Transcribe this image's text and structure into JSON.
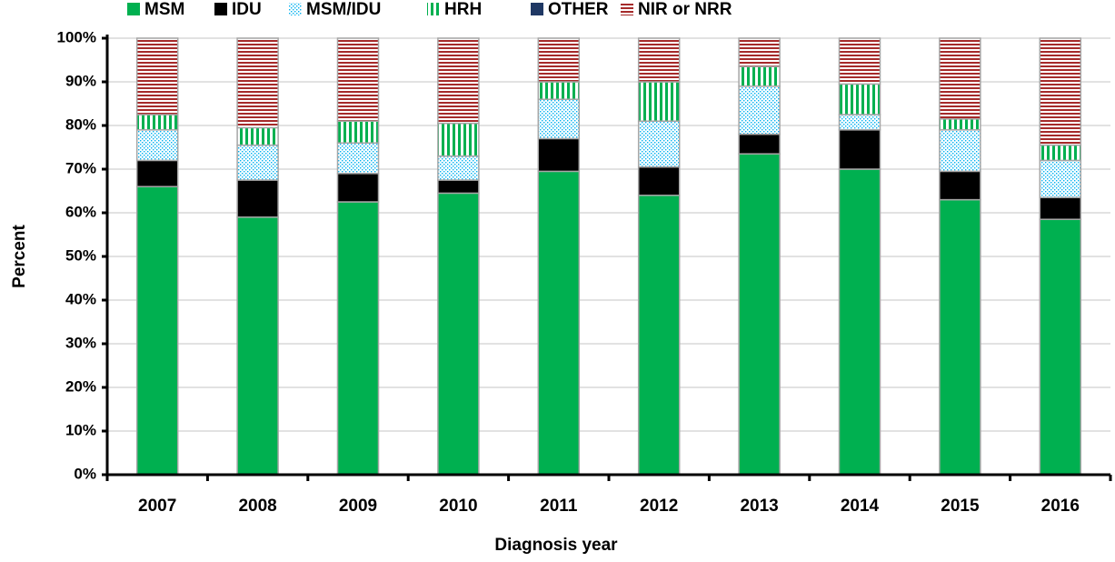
{
  "chart_data": {
    "type": "stacked_bar",
    "xlabel": "Diagnosis year",
    "ylabel": "Percent",
    "categories": [
      "2007",
      "2008",
      "2009",
      "2010",
      "2011",
      "2012",
      "2013",
      "2014",
      "2015",
      "2016"
    ],
    "series": [
      {
        "name": "MSM",
        "color": "#00b050",
        "pattern": "solid",
        "values": [
          66,
          59,
          62.5,
          64.5,
          69.5,
          64,
          73.5,
          70,
          63,
          58.5
        ]
      },
      {
        "name": "IDU",
        "color": "#000000",
        "pattern": "solid",
        "values": [
          6,
          8.5,
          6.5,
          3,
          7.5,
          6.5,
          4.5,
          9,
          6.5,
          5
        ]
      },
      {
        "name": "MSM/IDU",
        "color": "#00b0f0",
        "pattern": "dots",
        "values": [
          7,
          8,
          7,
          5.5,
          9,
          10.5,
          11,
          3.5,
          9.5,
          8.5
        ]
      },
      {
        "name": "HRH",
        "color": "#00b050",
        "pattern": "vstripes",
        "values": [
          3.5,
          4,
          5,
          7.5,
          4,
          9,
          4.5,
          7,
          2.5,
          3.5
        ]
      },
      {
        "name": "OTHER",
        "color": "#1f3864",
        "pattern": "solid",
        "values": [
          0,
          0,
          0,
          0,
          0,
          0,
          0,
          0,
          0,
          0
        ]
      },
      {
        "name": "NIR or NRR",
        "color": "#a52a2a",
        "pattern": "hstripes",
        "values": [
          17.5,
          20.5,
          19,
          19.5,
          10,
          10,
          6.5,
          10.5,
          18.5,
          24.5
        ]
      }
    ],
    "ylim": [
      0,
      100
    ],
    "yticks": [
      {
        "value": 0,
        "label": "0%"
      },
      {
        "value": 10,
        "label": "10%"
      },
      {
        "value": 20,
        "label": "20%"
      },
      {
        "value": 30,
        "label": "30%"
      },
      {
        "value": 40,
        "label": "40%"
      },
      {
        "value": 50,
        "label": "50%"
      },
      {
        "value": 60,
        "label": "60%"
      },
      {
        "value": 70,
        "label": "70%"
      },
      {
        "value": 80,
        "label": "80%"
      },
      {
        "value": 90,
        "label": "90%"
      },
      {
        "value": 100,
        "label": "100%"
      }
    ],
    "grid": true,
    "legend": "top"
  }
}
